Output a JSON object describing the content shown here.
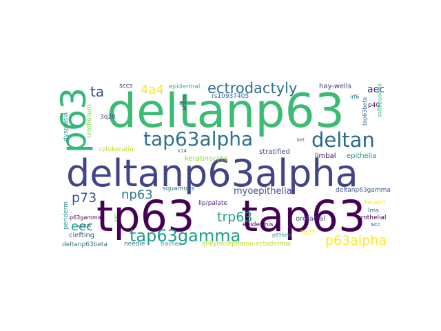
{
  "words": [
    {
      "t": "deltanp63",
      "c": "#3cbb75"
    },
    {
      "t": "deltanp63alpha",
      "c": "#414487"
    },
    {
      "t": "tp63",
      "c": "#440154"
    },
    {
      "t": "tap63",
      "c": "#440154"
    },
    {
      "t": "p63",
      "c": "#35b779"
    },
    {
      "t": "tap63alpha",
      "c": "#2c728e"
    },
    {
      "t": "deltan",
      "c": "#27698e"
    },
    {
      "t": "tap63gamma",
      "c": "#1f9e89"
    },
    {
      "t": "ectrodactyly",
      "c": "#2d708e"
    },
    {
      "t": "p63alpha",
      "c": "#fde725"
    },
    {
      "t": "np63",
      "c": "#2a788e"
    },
    {
      "t": "trp63",
      "c": "#20a386"
    },
    {
      "t": "p73",
      "c": "#3b528b"
    },
    {
      "t": "4a4",
      "c": "#fde725"
    },
    {
      "t": "ta",
      "c": "#3b528b"
    },
    {
      "t": "eec",
      "c": "#1f9e89"
    },
    {
      "t": "myoepithelial",
      "c": "#3b528b"
    },
    {
      "t": "aec",
      "c": "#46337e"
    },
    {
      "t": "sccs",
      "c": "#482878"
    },
    {
      "t": "epidermal",
      "c": "#35b779"
    },
    {
      "t": "rs10937405",
      "c": "#31688e"
    },
    {
      "t": "hay-wells",
      "c": "#443983"
    },
    {
      "t": "irf6",
      "c": "#2c728e"
    },
    {
      "t": "p40",
      "c": "#440154"
    },
    {
      "t": "tap63beta",
      "c": "#31688e"
    },
    {
      "t": "appendages",
      "c": "#35b779"
    },
    {
      "t": "urothelium",
      "c": "#7ad151"
    },
    {
      "t": "shfm",
      "c": "#472d7b"
    },
    {
      "t": "3q28",
      "c": "#3b528b"
    },
    {
      "t": "dysplasia",
      "c": "#21918c"
    },
    {
      "t": "cytokeratin",
      "c": "#b5de2b"
    },
    {
      "t": "ket",
      "c": "#3b528b"
    },
    {
      "t": "k14",
      "c": "#31688e"
    },
    {
      "t": "stratified",
      "c": "#3e4a89"
    },
    {
      "t": "keratinocyte",
      "c": "#90d743"
    },
    {
      "t": "epithelia",
      "c": "#21918c"
    },
    {
      "t": "limbal",
      "c": "#440154"
    },
    {
      "t": "squamous",
      "c": "#2c728e"
    },
    {
      "t": "deltanp63gamma",
      "c": "#3b528b"
    },
    {
      "t": "lip/palate",
      "c": "#482878"
    },
    {
      "t": "keratin",
      "c": "#fde725"
    },
    {
      "t": "ck5/6",
      "c": "#3b528b"
    },
    {
      "t": "periderm",
      "c": "#21918c"
    },
    {
      "t": "p63gamma",
      "c": "#440154"
    },
    {
      "t": "san",
      "c": "#7ad151"
    },
    {
      "t": "epidermis",
      "c": "#440154"
    },
    {
      "t": "orofacial",
      "c": "#3b528b"
    },
    {
      "t": "lms",
      "c": "#31688e"
    },
    {
      "t": "urothelial",
      "c": "#440154"
    },
    {
      "t": "p63beta",
      "c": "#21918c"
    },
    {
      "t": "clefting",
      "c": "#3b528b"
    },
    {
      "t": "3q27",
      "c": "#fde725"
    },
    {
      "t": "scc",
      "c": "#31688e"
    },
    {
      "t": "deltanp63beta",
      "c": "#2c728e"
    },
    {
      "t": "needle",
      "c": "#2c728e"
    },
    {
      "t": "trachea",
      "c": "#21918c"
    },
    {
      "t": "ankyloblepharon-ectodermal",
      "c": "#b5de2b"
    }
  ]
}
